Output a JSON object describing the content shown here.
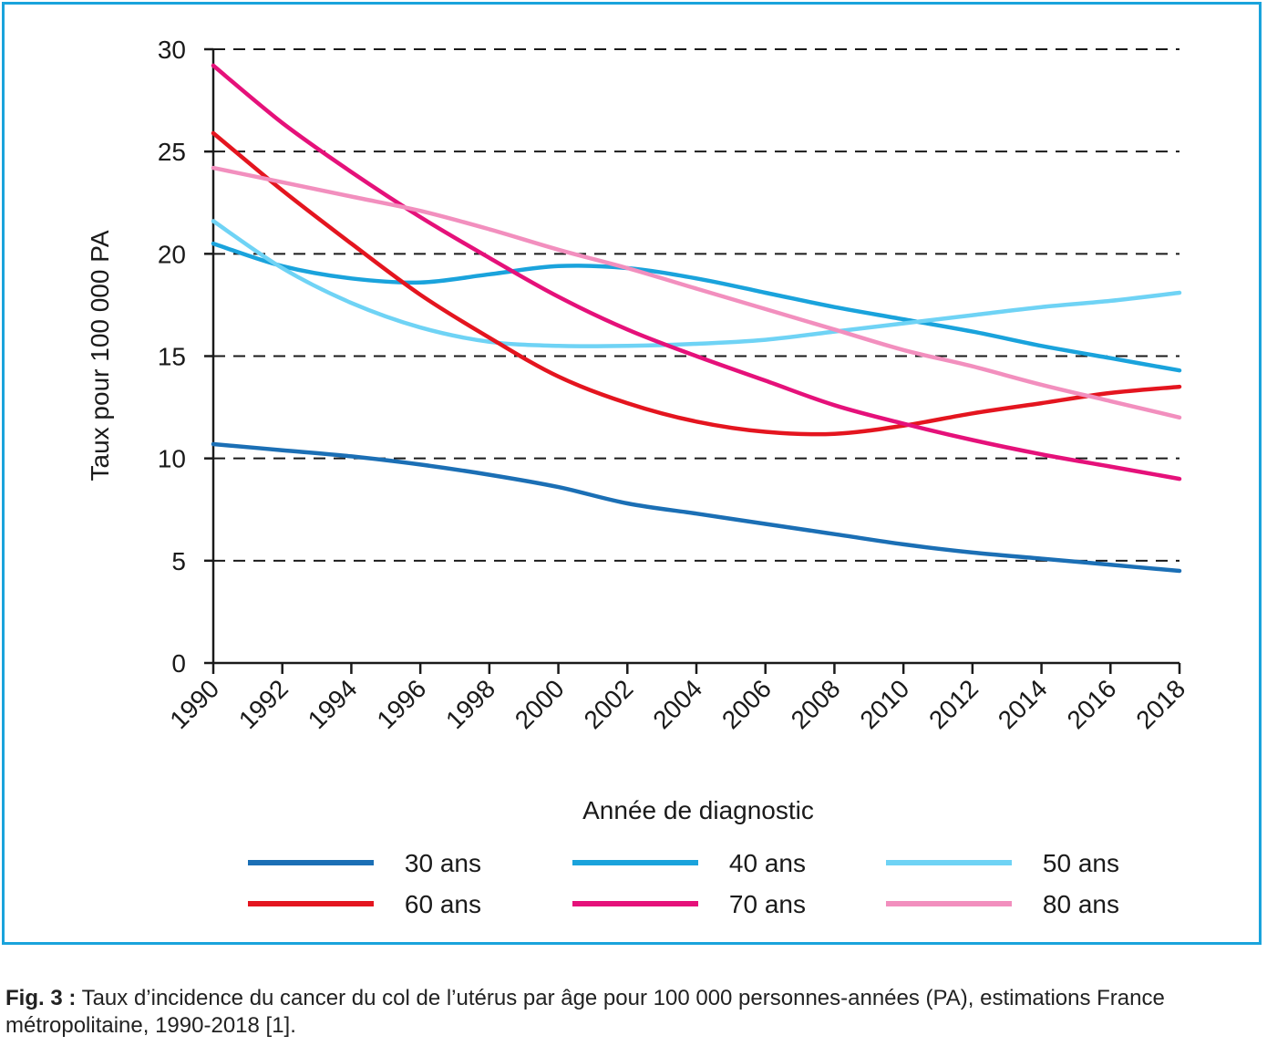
{
  "chart_data": {
    "type": "line",
    "xlabel": "Année de diagnostic",
    "ylabel": "Taux pour 100 000 PA",
    "xlim": [
      1990,
      2018
    ],
    "ylim": [
      0,
      30
    ],
    "x_ticks": [
      "1990",
      "1992",
      "1994",
      "1996",
      "1998",
      "2000",
      "2002",
      "2004",
      "2006",
      "2008",
      "2010",
      "2012",
      "2014",
      "2016",
      "2018"
    ],
    "y_ticks": [
      "0",
      "5",
      "10",
      "15",
      "20",
      "25",
      "30"
    ],
    "grid": "horizontal dashed",
    "legend_position": "bottom",
    "series": [
      {
        "name": "30 ans",
        "color": "#1b6fb5",
        "x": [
          1990,
          1992,
          1994,
          1996,
          1998,
          2000,
          2002,
          2004,
          2006,
          2008,
          2010,
          2012,
          2014,
          2016,
          2018
        ],
        "y": [
          10.7,
          10.4,
          10.1,
          9.7,
          9.2,
          8.6,
          7.8,
          7.3,
          6.8,
          6.3,
          5.8,
          5.4,
          5.1,
          4.8,
          4.5
        ]
      },
      {
        "name": "40 ans",
        "color": "#1aa3dc",
        "x": [
          1990,
          1992,
          1994,
          1996,
          1998,
          2000,
          2002,
          2004,
          2006,
          2008,
          2010,
          2012,
          2014,
          2016,
          2018
        ],
        "y": [
          20.5,
          19.4,
          18.8,
          18.6,
          19.0,
          19.4,
          19.3,
          18.8,
          18.1,
          17.4,
          16.8,
          16.2,
          15.5,
          14.9,
          14.3
        ]
      },
      {
        "name": "50 ans",
        "color": "#6fd3f5",
        "x": [
          1990,
          1992,
          1994,
          1996,
          1998,
          2000,
          2002,
          2004,
          2006,
          2008,
          2010,
          2012,
          2014,
          2016,
          2018
        ],
        "y": [
          21.6,
          19.3,
          17.6,
          16.4,
          15.7,
          15.5,
          15.5,
          15.6,
          15.8,
          16.2,
          16.6,
          17.0,
          17.4,
          17.7,
          18.1
        ]
      },
      {
        "name": "60 ans",
        "color": "#e4151f",
        "x": [
          1990,
          1992,
          1994,
          1996,
          1998,
          2000,
          2002,
          2004,
          2006,
          2008,
          2010,
          2012,
          2014,
          2016,
          2018
        ],
        "y": [
          25.9,
          23.1,
          20.5,
          18.0,
          15.9,
          14.0,
          12.7,
          11.8,
          11.3,
          11.2,
          11.6,
          12.2,
          12.7,
          13.2,
          13.5
        ]
      },
      {
        "name": "70 ans",
        "color": "#e5117a",
        "x": [
          1990,
          1992,
          1994,
          1996,
          1998,
          2000,
          2002,
          2004,
          2006,
          2008,
          2010,
          2012,
          2014,
          2016,
          2018
        ],
        "y": [
          29.2,
          26.4,
          24.0,
          21.8,
          19.8,
          17.9,
          16.3,
          15.0,
          13.8,
          12.6,
          11.7,
          10.9,
          10.2,
          9.6,
          9.0
        ]
      },
      {
        "name": "80 ans",
        "color": "#f28fbe",
        "x": [
          1990,
          1992,
          1994,
          1996,
          1998,
          2000,
          2002,
          2004,
          2006,
          2008,
          2010,
          2012,
          2014,
          2016,
          2018
        ],
        "y": [
          24.2,
          23.5,
          22.8,
          22.1,
          21.2,
          20.2,
          19.3,
          18.3,
          17.3,
          16.3,
          15.3,
          14.5,
          13.6,
          12.8,
          12.0
        ]
      }
    ]
  },
  "caption": {
    "lead": "Fig. 3 :",
    "text": " Taux d’incidence du cancer du col de l’utérus par âge pour 100 000 personnes-années (PA), estimations France métropolitaine, 1990-2018 [1]."
  }
}
